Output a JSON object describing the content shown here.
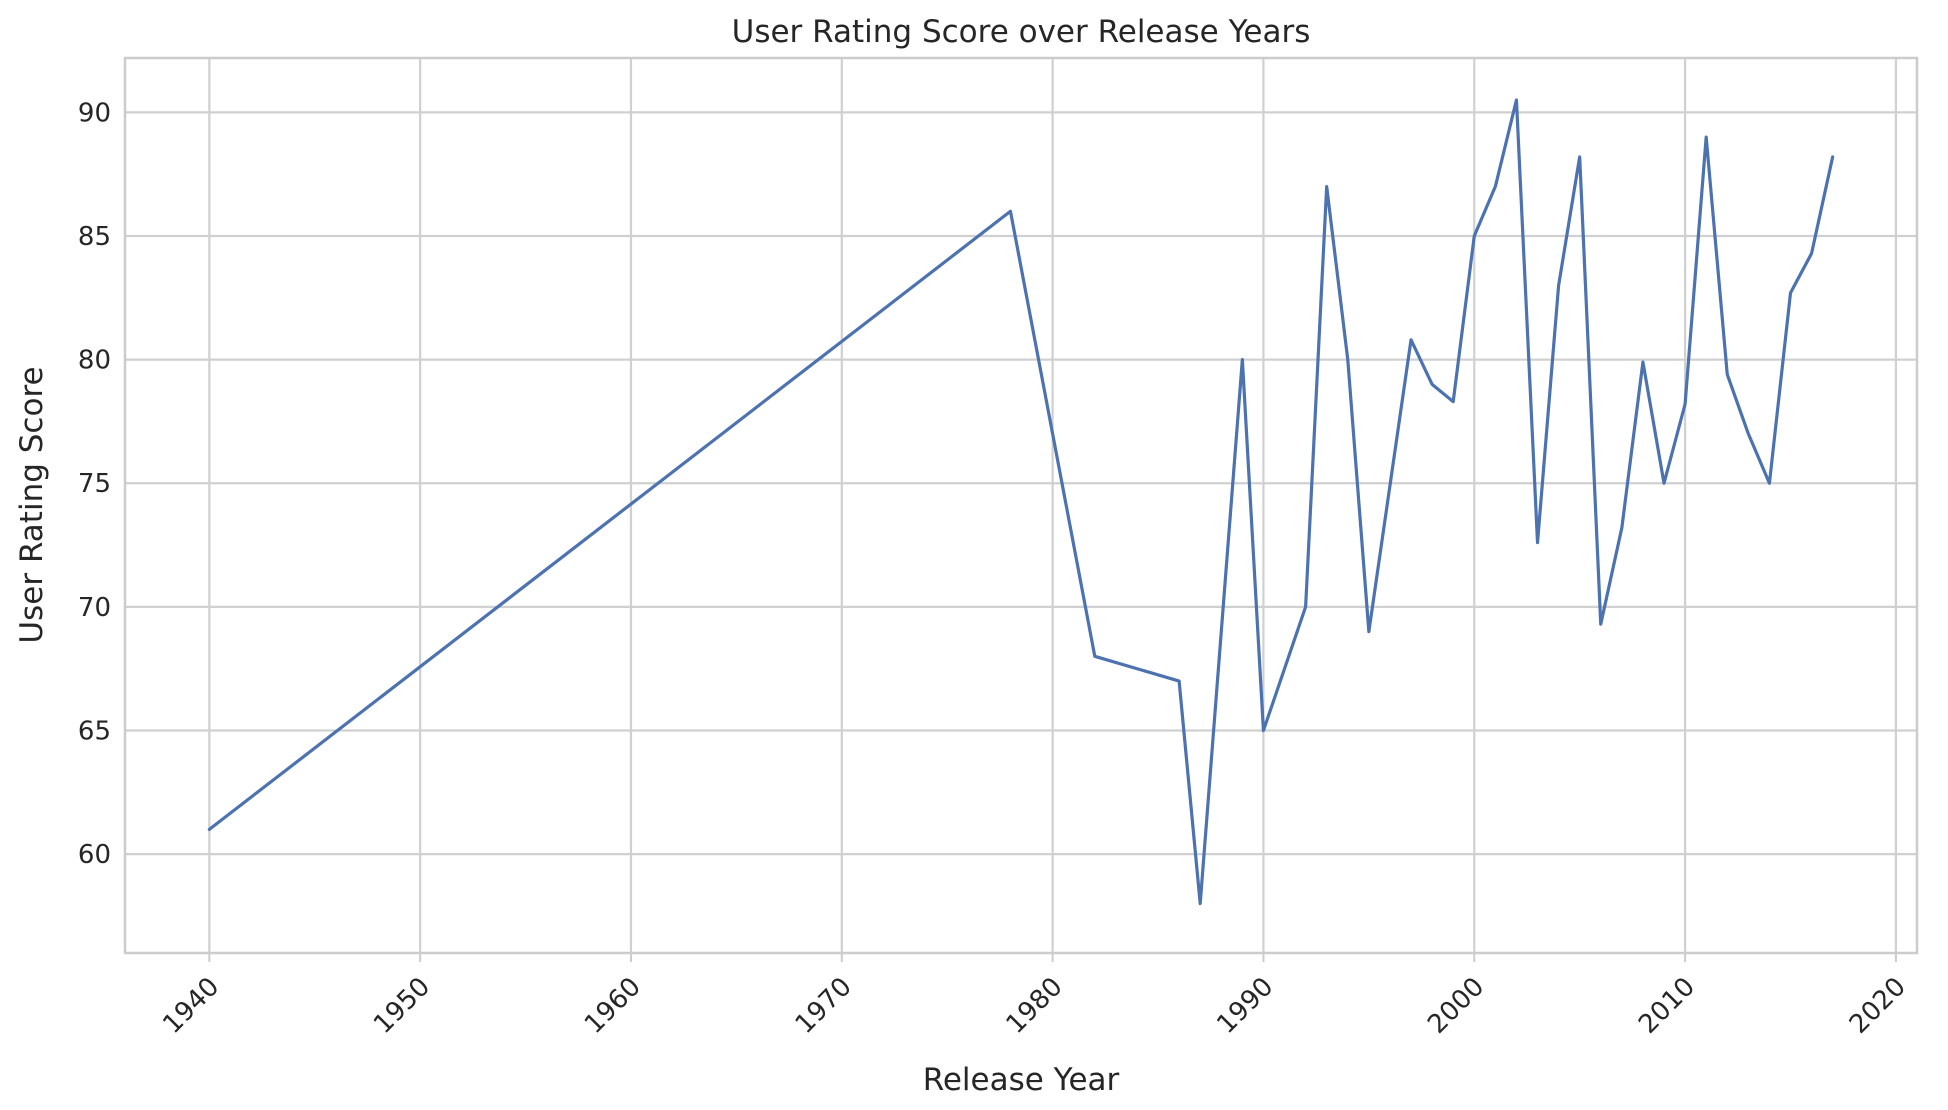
{
  "chart_data": {
    "type": "line",
    "title": "User Rating Score over Release Years",
    "xlabel": "Release Year",
    "ylabel": "User Rating Score",
    "xlim": [
      1936,
      2021
    ],
    "ylim": [
      56.0,
      92.2
    ],
    "x_ticks": [
      1940,
      1950,
      1960,
      1970,
      1980,
      1990,
      2000,
      2010,
      2020
    ],
    "y_ticks": [
      60,
      65,
      70,
      75,
      80,
      85,
      90
    ],
    "grid": true,
    "legend": "none",
    "series": [
      {
        "color": "#4c72b0",
        "x": [
          1940,
          1978,
          1982,
          1986,
          1987,
          1989,
          1990,
          1992,
          1993,
          1994,
          1995,
          1997,
          1998,
          1999,
          2000,
          2001,
          2002,
          2003,
          2004,
          2005,
          2006,
          2007,
          2008,
          2009,
          2010,
          2011,
          2012,
          2013,
          2014,
          2015,
          2016,
          2017
        ],
        "y": [
          61.0,
          86.0,
          68.0,
          67.0,
          58.0,
          80.0,
          65.0,
          70.0,
          87.0,
          80.0,
          69.0,
          80.8,
          79.0,
          78.3,
          85.0,
          87.0,
          90.5,
          72.6,
          83.0,
          88.2,
          69.3,
          73.2,
          79.9,
          75.0,
          78.2,
          89.0,
          79.4,
          77.0,
          75.0,
          82.7,
          84.3,
          88.2
        ]
      }
    ]
  }
}
